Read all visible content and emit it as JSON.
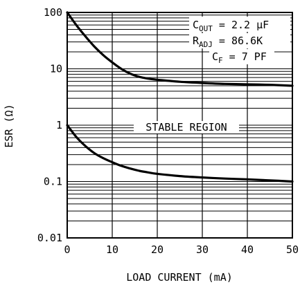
{
  "chart_data": {
    "type": "line",
    "title": "",
    "xlabel": "LOAD CURRENT (mA)",
    "ylabel": "ESR (Ω)",
    "xlim": [
      0,
      50
    ],
    "ylim": [
      0.01,
      100
    ],
    "yscale": "log",
    "grid": true,
    "x_ticks": [
      0,
      10,
      20,
      30,
      40,
      50
    ],
    "x_tick_labels": [
      "0",
      "10",
      "20",
      "30",
      "40",
      "50"
    ],
    "y_ticks": [
      0.01,
      0.1,
      1,
      10,
      100
    ],
    "y_tick_labels": [
      "0.01",
      "0.1",
      "1",
      "10",
      "100"
    ],
    "series": [
      {
        "x": [
          0,
          2,
          4,
          6,
          8,
          10,
          12,
          14,
          16,
          18,
          20,
          25,
          30,
          35,
          40,
          45,
          50
        ],
        "y": [
          100,
          60,
          38,
          25,
          17.5,
          13,
          10,
          8.2,
          7.2,
          6.7,
          6.4,
          5.9,
          5.6,
          5.4,
          5.3,
          5.2,
          5.0
        ]
      },
      {
        "x": [
          0,
          2,
          4,
          6,
          8,
          10,
          12,
          14,
          16,
          18,
          20,
          25,
          30,
          35,
          40,
          45,
          50
        ],
        "y": [
          1.0,
          0.62,
          0.43,
          0.32,
          0.26,
          0.22,
          0.19,
          0.17,
          0.155,
          0.145,
          0.137,
          0.125,
          0.118,
          0.113,
          0.109,
          0.105,
          0.1
        ]
      }
    ],
    "annotations": {
      "cout_sym": "C",
      "cout_sub": "OUT",
      "cout_val": " = 2.2 μF",
      "radj_sym": "R",
      "radj_sub": "ADJ",
      "radj_val": " = 86.6K",
      "cf_sym": "C",
      "cf_sub": "F",
      "cf_val": " = 7 PF",
      "region": "STABLE REGION"
    }
  }
}
